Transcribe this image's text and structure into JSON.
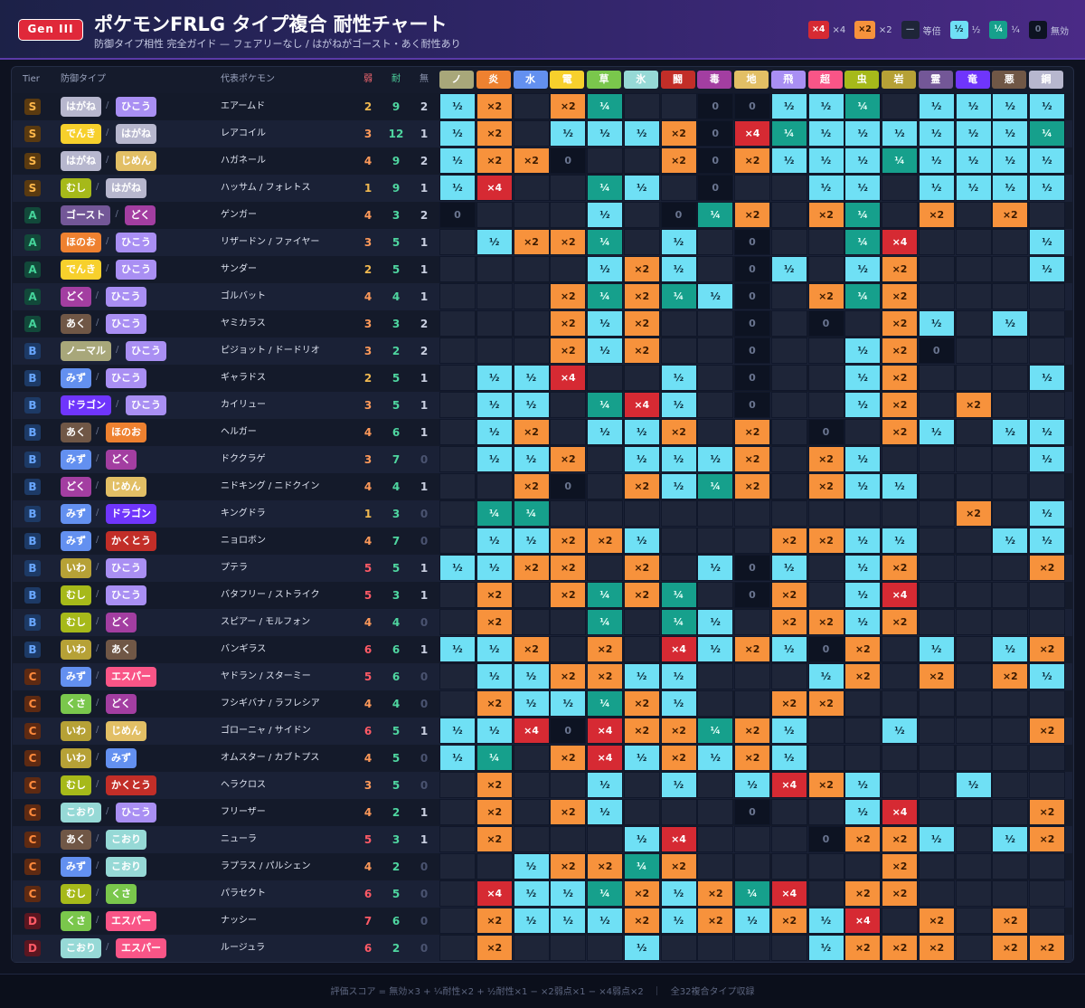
{
  "header": {
    "gen_badge": "Gen III",
    "title": "ポケモンFRLG タイプ複合 耐性チャート",
    "subtitle": "防御タイプ相性 完全ガイド — フェアリーなし / はがねがゴースト・あく耐性あり",
    "legend": [
      {
        "sym": "×4",
        "text": "×4",
        "bg": "#d62a33",
        "fg": "#ffffff"
      },
      {
        "sym": "×2",
        "text": "×2",
        "bg": "#f7923c",
        "fg": "#3a1a00"
      },
      {
        "sym": "—",
        "text": "等倍",
        "bg": "#1e2538",
        "fg": "#8a93ad"
      },
      {
        "sym": "½",
        "text": "½",
        "bg": "#6fe0f5",
        "fg": "#0d2a3a"
      },
      {
        "sym": "¼",
        "text": "¼",
        "bg": "#16a08c",
        "fg": "#e8fff9"
      },
      {
        "sym": "0",
        "text": "無効",
        "bg": "#0d1322",
        "fg": "#6a7590"
      }
    ]
  },
  "table_headers": {
    "tier": "Tier",
    "def_type": "防御タイプ",
    "pokemon": "代表ポケモン",
    "weak": "弱",
    "resist": "耐",
    "immune": "無"
  },
  "type_colors": {
    "ノーマル": "#a8a77a",
    "ほのお": "#ee8130",
    "みず": "#6390f0",
    "でんき": "#f7d02c",
    "くさ": "#7ac74c",
    "こおり": "#96d9d6",
    "かくとう": "#c22e28",
    "どく": "#a33ea1",
    "じめん": "#e2bf65",
    "ひこう": "#a98ff3",
    "エスパー": "#f95587",
    "むし": "#a6b91a",
    "いわ": "#b6a136",
    "ゴースト": "#735797",
    "ドラゴン": "#6f35fc",
    "あく": "#705746",
    "はがね": "#b7b7ce"
  },
  "tier_colors": {
    "S": {
      "bg": "#5a3a10",
      "fg": "#ffb84a"
    },
    "A": {
      "bg": "#12493a",
      "fg": "#45d49a"
    },
    "B": {
      "bg": "#1d3a66",
      "fg": "#69a7ff"
    },
    "C": {
      "bg": "#5e2a12",
      "fg": "#ff8a3c"
    },
    "D": {
      "bg": "#5a1620",
      "fg": "#ff5a66"
    }
  },
  "multiplier_styles": {
    "×4": {
      "bg": "#d62a33",
      "fg": "#ffffff"
    },
    "×2": {
      "bg": "#f7923c",
      "fg": "#3a1a00"
    },
    "½": {
      "bg": "#6fe0f5",
      "fg": "#0d2a3a"
    },
    "¼": {
      "bg": "#16a08c",
      "fg": "#e8fff9"
    },
    "0": {
      "bg": "#0d1322",
      "fg": "#6a7590"
    },
    "1": {
      "bg": "#1e2538",
      "fg": "#1e2538"
    }
  },
  "footer": "評価スコア = 無効×3 + ¼耐性×2 + ½耐性×1 − ×2弱点×1 − ×4弱点×2　｜　全32複合タイプ収録",
  "chart_data": {
    "type": "heatmap",
    "title": "ポケモンFRLG タイプ複合 耐性チャート",
    "attack_types": [
      {
        "label": "ノ",
        "type": "ノーマル"
      },
      {
        "label": "炎",
        "type": "ほのお"
      },
      {
        "label": "水",
        "type": "みず"
      },
      {
        "label": "電",
        "type": "でんき"
      },
      {
        "label": "草",
        "type": "くさ"
      },
      {
        "label": "氷",
        "type": "こおり"
      },
      {
        "label": "闘",
        "type": "かくとう"
      },
      {
        "label": "毒",
        "type": "どく"
      },
      {
        "label": "地",
        "type": "じめん"
      },
      {
        "label": "飛",
        "type": "ひこう"
      },
      {
        "label": "超",
        "type": "エスパー"
      },
      {
        "label": "虫",
        "type": "むし"
      },
      {
        "label": "岩",
        "type": "いわ"
      },
      {
        "label": "霊",
        "type": "ゴースト"
      },
      {
        "label": "竜",
        "type": "ドラゴン"
      },
      {
        "label": "悪",
        "type": "あく"
      },
      {
        "label": "鋼",
        "type": "はがね"
      }
    ],
    "rows": [
      {
        "tier": "S",
        "t1": "はがね",
        "t2": "ひこう",
        "pokemon": "エアームド",
        "weak": 2,
        "resist": 9,
        "immune": 2,
        "m": [
          "½",
          "×2",
          "1",
          "×2",
          "¼",
          "1",
          "1",
          "0",
          "0",
          "½",
          "½",
          "¼",
          "1",
          "½",
          "½",
          "½",
          "½"
        ]
      },
      {
        "tier": "S",
        "t1": "でんき",
        "t2": "はがね",
        "pokemon": "レアコイル",
        "weak": 3,
        "resist": 12,
        "immune": 1,
        "m": [
          "½",
          "×2",
          "1",
          "½",
          "½",
          "½",
          "×2",
          "0",
          "×4",
          "¼",
          "½",
          "½",
          "½",
          "½",
          "½",
          "½",
          "¼"
        ]
      },
      {
        "tier": "S",
        "t1": "はがね",
        "t2": "じめん",
        "pokemon": "ハガネール",
        "weak": 4,
        "resist": 9,
        "immune": 2,
        "m": [
          "½",
          "×2",
          "×2",
          "0",
          "1",
          "1",
          "×2",
          "0",
          "×2",
          "½",
          "½",
          "½",
          "¼",
          "½",
          "½",
          "½",
          "½"
        ]
      },
      {
        "tier": "S",
        "t1": "むし",
        "t2": "はがね",
        "pokemon": "ハッサム / フォレトス",
        "weak": 1,
        "resist": 9,
        "immune": 1,
        "m": [
          "½",
          "×4",
          "1",
          "1",
          "¼",
          "½",
          "1",
          "0",
          "1",
          "1",
          "½",
          "½",
          "1",
          "½",
          "½",
          "½",
          "½"
        ]
      },
      {
        "tier": "A",
        "t1": "ゴースト",
        "t2": "どく",
        "pokemon": "ゲンガー",
        "weak": 4,
        "resist": 3,
        "immune": 2,
        "m": [
          "0",
          "1",
          "1",
          "1",
          "½",
          "1",
          "0",
          "¼",
          "×2",
          "1",
          "×2",
          "¼",
          "1",
          "×2",
          "1",
          "×2",
          "1"
        ]
      },
      {
        "tier": "A",
        "t1": "ほのお",
        "t2": "ひこう",
        "pokemon": "リザードン / ファイヤー",
        "weak": 3,
        "resist": 5,
        "immune": 1,
        "m": [
          "1",
          "½",
          "×2",
          "×2",
          "¼",
          "1",
          "½",
          "1",
          "0",
          "1",
          "1",
          "¼",
          "×4",
          "1",
          "1",
          "1",
          "½"
        ]
      },
      {
        "tier": "A",
        "t1": "でんき",
        "t2": "ひこう",
        "pokemon": "サンダー",
        "weak": 2,
        "resist": 5,
        "immune": 1,
        "m": [
          "1",
          "1",
          "1",
          "1",
          "½",
          "×2",
          "½",
          "1",
          "0",
          "½",
          "1",
          "½",
          "×2",
          "1",
          "1",
          "1",
          "½"
        ]
      },
      {
        "tier": "A",
        "t1": "どく",
        "t2": "ひこう",
        "pokemon": "ゴルバット",
        "weak": 4,
        "resist": 4,
        "immune": 1,
        "m": [
          "1",
          "1",
          "1",
          "×2",
          "¼",
          "×2",
          "¼",
          "½",
          "0",
          "1",
          "×2",
          "¼",
          "×2",
          "1",
          "1",
          "1",
          "1"
        ]
      },
      {
        "tier": "A",
        "t1": "あく",
        "t2": "ひこう",
        "pokemon": "ヤミカラス",
        "weak": 3,
        "resist": 3,
        "immune": 2,
        "m": [
          "1",
          "1",
          "1",
          "×2",
          "½",
          "×2",
          "1",
          "1",
          "0",
          "1",
          "0",
          "1",
          "×2",
          "½",
          "1",
          "½",
          "1"
        ]
      },
      {
        "tier": "B",
        "t1": "ノーマル",
        "t2": "ひこう",
        "pokemon": "ピジョット / ドードリオ",
        "weak": 3,
        "resist": 2,
        "immune": 2,
        "m": [
          "1",
          "1",
          "1",
          "×2",
          "½",
          "×2",
          "1",
          "1",
          "0",
          "1",
          "1",
          "½",
          "×2",
          "0",
          "1",
          "1",
          "1"
        ]
      },
      {
        "tier": "B",
        "t1": "みず",
        "t2": "ひこう",
        "pokemon": "ギャラドス",
        "weak": 2,
        "resist": 5,
        "immune": 1,
        "m": [
          "1",
          "½",
          "½",
          "×4",
          "1",
          "1",
          "½",
          "1",
          "0",
          "1",
          "1",
          "½",
          "×2",
          "1",
          "1",
          "1",
          "½"
        ]
      },
      {
        "tier": "B",
        "t1": "ドラゴン",
        "t2": "ひこう",
        "pokemon": "カイリュー",
        "weak": 3,
        "resist": 5,
        "immune": 1,
        "m": [
          "1",
          "½",
          "½",
          "1",
          "¼",
          "×4",
          "½",
          "1",
          "0",
          "1",
          "1",
          "½",
          "×2",
          "1",
          "×2",
          "1",
          "1"
        ]
      },
      {
        "tier": "B",
        "t1": "あく",
        "t2": "ほのお",
        "pokemon": "ヘルガー",
        "weak": 4,
        "resist": 6,
        "immune": 1,
        "m": [
          "1",
          "½",
          "×2",
          "1",
          "½",
          "½",
          "×2",
          "1",
          "×2",
          "1",
          "0",
          "1",
          "×2",
          "½",
          "1",
          "½",
          "½"
        ]
      },
      {
        "tier": "B",
        "t1": "みず",
        "t2": "どく",
        "pokemon": "ドククラゲ",
        "weak": 3,
        "resist": 7,
        "immune": 0,
        "m": [
          "1",
          "½",
          "½",
          "×2",
          "1",
          "½",
          "½",
          "½",
          "×2",
          "1",
          "×2",
          "½",
          "1",
          "1",
          "1",
          "1",
          "½"
        ]
      },
      {
        "tier": "B",
        "t1": "どく",
        "t2": "じめん",
        "pokemon": "ニドキング / ニドクイン",
        "weak": 4,
        "resist": 4,
        "immune": 1,
        "m": [
          "1",
          "1",
          "×2",
          "0",
          "1",
          "×2",
          "½",
          "¼",
          "×2",
          "1",
          "×2",
          "½",
          "½",
          "1",
          "1",
          "1",
          "1"
        ]
      },
      {
        "tier": "B",
        "t1": "みず",
        "t2": "ドラゴン",
        "pokemon": "キングドラ",
        "weak": 1,
        "resist": 3,
        "immune": 0,
        "m": [
          "1",
          "¼",
          "¼",
          "1",
          "1",
          "1",
          "1",
          "1",
          "1",
          "1",
          "1",
          "1",
          "1",
          "1",
          "×2",
          "1",
          "½"
        ]
      },
      {
        "tier": "B",
        "t1": "みず",
        "t2": "かくとう",
        "pokemon": "ニョロボン",
        "weak": 4,
        "resist": 7,
        "immune": 0,
        "m": [
          "1",
          "½",
          "½",
          "×2",
          "×2",
          "½",
          "1",
          "1",
          "1",
          "×2",
          "×2",
          "½",
          "½",
          "1",
          "1",
          "½",
          "½"
        ]
      },
      {
        "tier": "B",
        "t1": "いわ",
        "t2": "ひこう",
        "pokemon": "プテラ",
        "weak": 5,
        "resist": 5,
        "immune": 1,
        "m": [
          "½",
          "½",
          "×2",
          "×2",
          "1",
          "×2",
          "1",
          "½",
          "0",
          "½",
          "1",
          "½",
          "×2",
          "1",
          "1",
          "1",
          "×2"
        ]
      },
      {
        "tier": "B",
        "t1": "むし",
        "t2": "ひこう",
        "pokemon": "バタフリー / ストライク",
        "weak": 5,
        "resist": 3,
        "immune": 1,
        "m": [
          "1",
          "×2",
          "1",
          "×2",
          "¼",
          "×2",
          "¼",
          "1",
          "0",
          "×2",
          "1",
          "½",
          "×4",
          "1",
          "1",
          "1",
          "1"
        ]
      },
      {
        "tier": "B",
        "t1": "むし",
        "t2": "どく",
        "pokemon": "スピアー / モルフォン",
        "weak": 4,
        "resist": 4,
        "immune": 0,
        "m": [
          "1",
          "×2",
          "1",
          "1",
          "¼",
          "1",
          "¼",
          "½",
          "1",
          "×2",
          "×2",
          "½",
          "×2",
          "1",
          "1",
          "1",
          "1"
        ]
      },
      {
        "tier": "B",
        "t1": "いわ",
        "t2": "あく",
        "pokemon": "バンギラス",
        "weak": 6,
        "resist": 6,
        "immune": 1,
        "m": [
          "½",
          "½",
          "×2",
          "1",
          "×2",
          "1",
          "×4",
          "½",
          "×2",
          "½",
          "0",
          "×2",
          "1",
          "½",
          "1",
          "½",
          "×2"
        ]
      },
      {
        "tier": "C",
        "t1": "みず",
        "t2": "エスパー",
        "pokemon": "ヤドラン / スターミー",
        "weak": 5,
        "resist": 6,
        "immune": 0,
        "m": [
          "1",
          "½",
          "½",
          "×2",
          "×2",
          "½",
          "½",
          "1",
          "1",
          "1",
          "½",
          "×2",
          "1",
          "×2",
          "1",
          "×2",
          "½"
        ]
      },
      {
        "tier": "C",
        "t1": "くさ",
        "t2": "どく",
        "pokemon": "フシギバナ / ラフレシア",
        "weak": 4,
        "resist": 4,
        "immune": 0,
        "m": [
          "1",
          "×2",
          "½",
          "½",
          "¼",
          "×2",
          "½",
          "1",
          "1",
          "×2",
          "×2",
          "1",
          "1",
          "1",
          "1",
          "1",
          "1"
        ]
      },
      {
        "tier": "C",
        "t1": "いわ",
        "t2": "じめん",
        "pokemon": "ゴローニャ / サイドン",
        "weak": 6,
        "resist": 5,
        "immune": 1,
        "m": [
          "½",
          "½",
          "×4",
          "0",
          "×4",
          "×2",
          "×2",
          "¼",
          "×2",
          "½",
          "1",
          "1",
          "½",
          "1",
          "1",
          "1",
          "×2"
        ]
      },
      {
        "tier": "C",
        "t1": "いわ",
        "t2": "みず",
        "pokemon": "オムスター / カブトプス",
        "weak": 4,
        "resist": 5,
        "immune": 0,
        "m": [
          "½",
          "¼",
          "1",
          "×2",
          "×4",
          "½",
          "×2",
          "½",
          "×2",
          "½",
          "1",
          "1",
          "1",
          "1",
          "1",
          "1",
          "1"
        ]
      },
      {
        "tier": "C",
        "t1": "むし",
        "t2": "かくとう",
        "pokemon": "ヘラクロス",
        "weak": 3,
        "resist": 5,
        "immune": 0,
        "m": [
          "1",
          "×2",
          "1",
          "1",
          "½",
          "1",
          "½",
          "1",
          "½",
          "×4",
          "×2",
          "½",
          "1",
          "1",
          "½",
          "1",
          "1"
        ]
      },
      {
        "tier": "C",
        "t1": "こおり",
        "t2": "ひこう",
        "pokemon": "フリーザー",
        "weak": 4,
        "resist": 2,
        "immune": 1,
        "m": [
          "1",
          "×2",
          "1",
          "×2",
          "½",
          "1",
          "1",
          "1",
          "0",
          "1",
          "1",
          "½",
          "×4",
          "1",
          "1",
          "1",
          "×2"
        ]
      },
      {
        "tier": "C",
        "t1": "あく",
        "t2": "こおり",
        "pokemon": "ニューラ",
        "weak": 5,
        "resist": 3,
        "immune": 1,
        "m": [
          "1",
          "×2",
          "1",
          "1",
          "1",
          "½",
          "×4",
          "1",
          "1",
          "1",
          "0",
          "×2",
          "×2",
          "½",
          "1",
          "½",
          "×2"
        ]
      },
      {
        "tier": "C",
        "t1": "みず",
        "t2": "こおり",
        "pokemon": "ラプラス / パルシェン",
        "weak": 4,
        "resist": 2,
        "immune": 0,
        "m": [
          "1",
          "1",
          "½",
          "×2",
          "×2",
          "¼",
          "×2",
          "1",
          "1",
          "1",
          "1",
          "1",
          "×2",
          "1",
          "1",
          "1",
          "1"
        ]
      },
      {
        "tier": "C",
        "t1": "むし",
        "t2": "くさ",
        "pokemon": "パラセクト",
        "weak": 6,
        "resist": 5,
        "immune": 0,
        "m": [
          "1",
          "×4",
          "½",
          "½",
          "¼",
          "×2",
          "½",
          "×2",
          "¼",
          "×4",
          "1",
          "×2",
          "×2",
          "1",
          "1",
          "1",
          "1"
        ]
      },
      {
        "tier": "D",
        "t1": "くさ",
        "t2": "エスパー",
        "pokemon": "ナッシー",
        "weak": 7,
        "resist": 6,
        "immune": 0,
        "m": [
          "1",
          "×2",
          "½",
          "½",
          "½",
          "×2",
          "½",
          "×2",
          "½",
          "×2",
          "½",
          "×4",
          "1",
          "×2",
          "1",
          "×2",
          "1"
        ]
      },
      {
        "tier": "D",
        "t1": "こおり",
        "t2": "エスパー",
        "pokemon": "ルージュラ",
        "weak": 6,
        "resist": 2,
        "immune": 0,
        "m": [
          "1",
          "×2",
          "1",
          "1",
          "1",
          "½",
          "1",
          "1",
          "1",
          "1",
          "½",
          "×2",
          "×2",
          "×2",
          "1",
          "×2",
          "×2"
        ]
      }
    ]
  }
}
